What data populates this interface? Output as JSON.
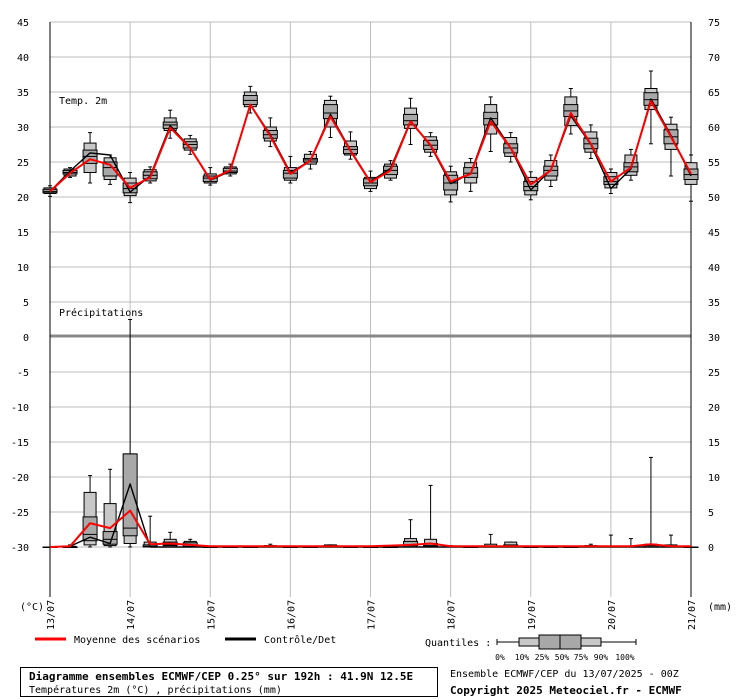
{
  "chart_data": {
    "type": "box",
    "title": "Diagramme ensembles ECMWF/CEP 0.25° sur 192h : 41.9N 12.5E",
    "subtitle": "Températures 2m (°C) , précipitations (mm)",
    "run_info": "Ensemble ECMWF/CEP du 13/07/2025 - 00Z",
    "copyright": "Copyright 2025 Meteociel.fr - ECMWF",
    "left_axis_label": "(°C)",
    "right_axis_label": "(mm)",
    "left_ticks": [
      "45",
      "40",
      "35",
      "30",
      "25",
      "20",
      "15",
      "10",
      "5",
      "0",
      "-5",
      "-10",
      "-15",
      "-20",
      "-25",
      "-30"
    ],
    "right_ticks": [
      "75",
      "70",
      "65",
      "60",
      "55",
      "50",
      "45",
      "40",
      "35",
      "30",
      "25",
      "20",
      "15",
      "10",
      "5",
      "0"
    ],
    "date_labels": [
      "13/07",
      "14/07",
      "15/07",
      "16/07",
      "17/07",
      "18/07",
      "19/07",
      "20/07",
      "21/07"
    ],
    "panel_temp_label": "Temp. 2m",
    "panel_precip_label": "Précipitations",
    "legend": {
      "mean_label": "Moyenne des scénarios",
      "mean_color": "#ff0000",
      "control_label": "Contrôle/Det",
      "control_color": "#000000",
      "quantiles_label": "Quantiles :",
      "quantile_labels": [
        "0%",
        "10%",
        "25%",
        "50%",
        "75%",
        "90%",
        "100%"
      ]
    },
    "x_unit": "hours since 13/07 00Z",
    "temperature": {
      "unit": "°C",
      "x": [
        0,
        6,
        12,
        18,
        24,
        30,
        36,
        42,
        48,
        54,
        60,
        66,
        72,
        78,
        84,
        90,
        96,
        102,
        108,
        114,
        120,
        126,
        132,
        138,
        144,
        150,
        156,
        162,
        168,
        174,
        180,
        186,
        192
      ],
      "mean": [
        20.8,
        23.4,
        25.4,
        24.6,
        21.3,
        22.8,
        29.9,
        27.0,
        22.5,
        23.8,
        33.2,
        28.7,
        23.3,
        25.2,
        31.5,
        26.6,
        22.1,
        23.8,
        30.8,
        27.4,
        22.2,
        23.3,
        30.8,
        27.0,
        21.8,
        23.8,
        32.0,
        27.6,
        22.2,
        24.2,
        33.7,
        28.6,
        23.3
      ],
      "control": [
        20.8,
        23.7,
        26.3,
        26.0,
        20.7,
        23.0,
        30.2,
        27.0,
        22.4,
        23.7,
        33.2,
        28.9,
        23.5,
        25.2,
        31.8,
        26.7,
        22.2,
        24.1,
        30.9,
        27.3,
        21.9,
        23.4,
        31.3,
        27.0,
        21.0,
        23.9,
        31.6,
        27.5,
        21.2,
        24.0,
        34.0,
        28.8,
        23.0
      ],
      "boxes": [
        [
          20.1,
          20.5,
          20.6,
          20.8,
          21.1,
          21.3,
          21.6
        ],
        [
          22.8,
          23.0,
          23.3,
          23.5,
          23.8,
          24.0,
          24.2
        ],
        [
          22.0,
          23.5,
          24.8,
          25.8,
          26.7,
          27.7,
          29.2
        ],
        [
          21.8,
          22.5,
          23.0,
          24.2,
          25.0,
          25.6,
          26.0
        ],
        [
          19.2,
          20.2,
          20.6,
          21.2,
          22.0,
          22.7,
          23.5
        ],
        [
          22.0,
          22.3,
          22.6,
          23.1,
          23.6,
          23.9,
          24.3
        ],
        [
          28.4,
          29.5,
          29.8,
          30.3,
          30.7,
          31.3,
          32.4
        ],
        [
          26.1,
          26.7,
          27.0,
          27.5,
          27.9,
          28.3,
          28.8
        ],
        [
          21.7,
          22.0,
          22.2,
          22.7,
          23.0,
          23.3,
          24.2
        ],
        [
          23.0,
          23.3,
          23.5,
          23.7,
          24.1,
          24.3,
          24.7
        ],
        [
          32.0,
          32.9,
          33.2,
          33.8,
          34.5,
          35.0,
          35.8
        ],
        [
          27.2,
          28.0,
          28.4,
          28.9,
          29.5,
          30.0,
          31.3
        ],
        [
          22.0,
          22.4,
          22.7,
          23.4,
          23.8,
          24.2,
          25.8
        ],
        [
          24.0,
          24.7,
          25.0,
          25.3,
          25.5,
          26.1,
          26.5
        ],
        [
          28.5,
          30.0,
          31.2,
          32.0,
          33.2,
          33.8,
          34.4
        ],
        [
          25.4,
          26.0,
          26.2,
          26.8,
          27.2,
          28.0,
          29.3
        ],
        [
          20.8,
          21.2,
          21.6,
          22.0,
          22.6,
          22.8,
          23.7
        ],
        [
          22.4,
          22.7,
          23.2,
          23.8,
          24.4,
          24.7,
          25.2
        ],
        [
          27.5,
          29.8,
          30.3,
          30.9,
          31.8,
          32.7,
          34.1
        ],
        [
          25.8,
          26.4,
          26.8,
          27.4,
          28.1,
          28.6,
          29.2
        ],
        [
          19.3,
          20.3,
          21.0,
          22.0,
          23.1,
          23.6,
          24.4
        ],
        [
          20.8,
          22.0,
          22.8,
          23.4,
          24.2,
          24.9,
          25.5
        ],
        [
          26.5,
          29.0,
          30.3,
          31.2,
          32.1,
          33.2,
          34.3
        ],
        [
          25.0,
          25.8,
          26.3,
          27.0,
          27.6,
          28.5,
          29.2
        ],
        [
          19.6,
          20.3,
          20.9,
          21.5,
          22.2,
          22.8,
          23.6
        ],
        [
          21.5,
          22.4,
          23.0,
          23.8,
          24.4,
          25.2,
          26.0
        ],
        [
          29.0,
          30.2,
          31.5,
          32.3,
          33.2,
          34.3,
          35.5
        ],
        [
          25.5,
          26.4,
          26.9,
          27.6,
          28.4,
          29.3,
          30.3
        ],
        [
          20.5,
          21.3,
          21.8,
          22.2,
          22.9,
          23.5,
          24.0
        ],
        [
          22.4,
          23.1,
          23.6,
          24.3,
          24.9,
          26.0,
          26.8
        ],
        [
          27.6,
          32.5,
          33.1,
          33.9,
          34.9,
          35.5,
          38.0
        ],
        [
          23.0,
          26.8,
          27.6,
          28.6,
          29.6,
          30.4,
          31.4
        ],
        [
          19.4,
          21.8,
          22.5,
          23.2,
          24.0,
          24.9,
          26.0
        ]
      ]
    },
    "precipitation": {
      "unit": "mm",
      "x": [
        0,
        6,
        12,
        18,
        24,
        30,
        36,
        42,
        48,
        54,
        60,
        66,
        72,
        78,
        84,
        90,
        96,
        102,
        108,
        114,
        120,
        126,
        132,
        138,
        144,
        150,
        156,
        162,
        168,
        174,
        180,
        186,
        192
      ],
      "mean": [
        0,
        0.1,
        3.4,
        2.7,
        5.2,
        0.4,
        0.5,
        0.3,
        0.1,
        0.1,
        0.1,
        0.1,
        0.1,
        0.1,
        0.1,
        0.1,
        0.1,
        0.2,
        0.3,
        0.5,
        0.1,
        0.1,
        0.1,
        0.1,
        0.1,
        0.1,
        0.1,
        0.1,
        0.1,
        0.1,
        0.4,
        0.1,
        0.1
      ],
      "control": [
        0,
        0.1,
        1.4,
        0.5,
        9.0,
        0,
        0,
        0,
        0,
        0,
        0,
        0,
        0,
        0,
        0,
        0,
        0,
        0,
        0,
        0,
        0,
        0,
        0,
        0,
        0,
        0,
        0,
        0,
        0,
        0,
        0,
        0,
        0
      ],
      "boxes": [
        [
          0,
          0,
          0,
          0,
          0,
          0,
          0
        ],
        [
          0,
          0,
          0,
          0,
          0,
          0.1,
          0.3
        ],
        [
          0,
          0.3,
          0.9,
          1.8,
          4.3,
          7.8,
          10.2
        ],
        [
          0,
          0.2,
          0.4,
          1.1,
          2.2,
          6.2,
          11.1
        ],
        [
          0,
          0.5,
          1.6,
          2.7,
          13.3,
          13.3,
          32.5
        ],
        [
          0,
          0,
          0,
          0.1,
          0.3,
          0.7,
          4.4
        ],
        [
          0,
          0,
          0.2,
          0.3,
          0.7,
          1.1,
          2.1
        ],
        [
          0,
          0,
          0.1,
          0.3,
          0.6,
          0.8,
          1.1
        ],
        [
          0,
          0,
          0,
          0,
          0,
          0,
          0
        ],
        [
          0,
          0,
          0,
          0,
          0,
          0,
          0
        ],
        [
          0,
          0,
          0,
          0,
          0,
          0,
          0
        ],
        [
          0,
          0,
          0,
          0,
          0.1,
          0.2,
          0.4
        ],
        [
          0,
          0,
          0,
          0,
          0,
          0,
          0
        ],
        [
          0,
          0,
          0,
          0,
          0,
          0,
          0
        ],
        [
          0,
          0,
          0,
          0.1,
          0.2,
          0.3,
          0.3
        ],
        [
          0,
          0,
          0,
          0,
          0,
          0,
          0
        ],
        [
          0,
          0,
          0,
          0,
          0,
          0,
          0
        ],
        [
          0,
          0,
          0,
          0,
          0,
          0,
          0
        ],
        [
          0,
          0,
          0.2,
          0.2,
          0.8,
          1.2,
          3.9
        ],
        [
          0,
          0,
          0.1,
          0.2,
          0.5,
          1.1,
          8.8
        ],
        [
          0,
          0,
          0,
          0,
          0.1,
          0.1,
          0.2
        ],
        [
          0,
          0,
          0,
          0,
          0,
          0,
          0
        ],
        [
          0,
          0,
          0,
          0,
          0.1,
          0.4,
          1.8
        ],
        [
          0,
          0,
          0,
          0,
          0.3,
          0.7,
          0.7
        ],
        [
          0,
          0,
          0,
          0,
          0,
          0,
          0
        ],
        [
          0,
          0,
          0,
          0,
          0,
          0,
          0
        ],
        [
          0,
          0,
          0,
          0,
          0,
          0,
          0
        ],
        [
          0,
          0,
          0,
          0,
          0.1,
          0.2,
          0.4
        ],
        [
          0,
          0,
          0,
          0,
          0.1,
          0.1,
          1.7
        ],
        [
          0,
          0,
          0,
          0,
          0.1,
          0.1,
          1.2
        ],
        [
          0,
          0,
          0,
          0,
          0.2,
          0.4,
          12.8
        ],
        [
          0,
          0,
          0,
          0,
          0.1,
          0.3,
          1.7
        ],
        [
          0,
          0,
          0,
          0,
          0,
          0,
          0
        ]
      ]
    }
  }
}
